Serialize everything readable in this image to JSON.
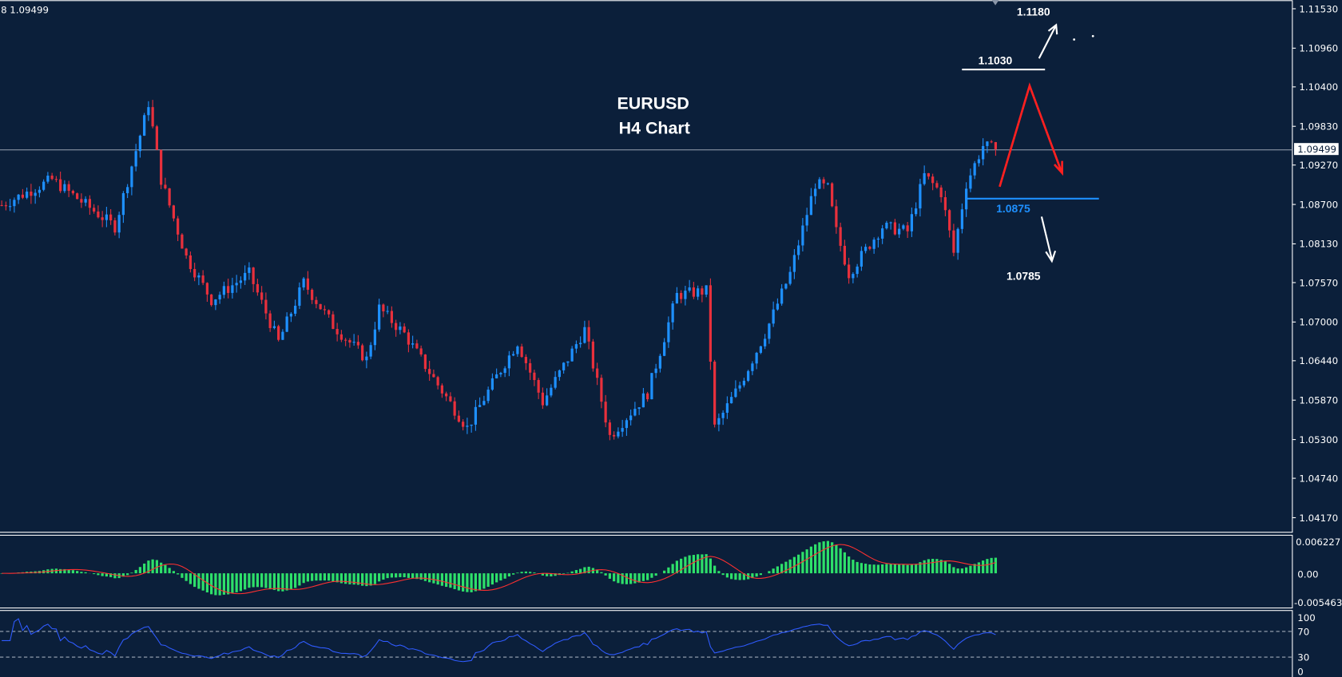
{
  "header": {
    "info": "8 1.09499"
  },
  "chart_data": {
    "type": "candlestick",
    "title": "EURUSD",
    "subtitle": "H4 Chart",
    "last_price": 1.09499,
    "last_price_label": "1.09499",
    "colors": {
      "background": "#0b1f3a",
      "bull": "#1e90ff",
      "bear": "#e8303c",
      "macd_hist": "#2ee06a",
      "macd_signal": "#ff3030",
      "rsi": "#2f5bff"
    },
    "price_ticks": [
      "1.11530",
      "1.10960",
      "1.10400",
      "1.09830",
      "1.09270",
      "1.08700",
      "1.08130",
      "1.07570",
      "1.07000",
      "1.06440",
      "1.05870",
      "1.05300",
      "1.04740",
      "1.04170"
    ],
    "ylim": [
      1.0417,
      1.1153
    ],
    "candle_count": 238,
    "path_waypoints": [
      [
        0,
        1.0869
      ],
      [
        12,
        1.0906
      ],
      [
        27,
        1.0838
      ],
      [
        34,
        1.0992
      ],
      [
        35,
        1.1017
      ],
      [
        38,
        1.0906
      ],
      [
        44,
        1.0794
      ],
      [
        50,
        1.0732
      ],
      [
        59,
        1.077
      ],
      [
        66,
        1.0671
      ],
      [
        72,
        1.0757
      ],
      [
        79,
        1.0695
      ],
      [
        87,
        1.0646
      ],
      [
        90,
        1.072
      ],
      [
        96,
        1.0683
      ],
      [
        104,
        1.0609
      ],
      [
        111,
        1.0547
      ],
      [
        118,
        1.0621
      ],
      [
        123,
        1.0671
      ],
      [
        129,
        1.0584
      ],
      [
        139,
        1.0689
      ],
      [
        145,
        1.0535
      ],
      [
        154,
        1.0597
      ],
      [
        161,
        1.0739
      ],
      [
        168,
        1.0745
      ],
      [
        170,
        1.0547
      ],
      [
        176,
        1.0609
      ],
      [
        182,
        1.0683
      ],
      [
        188,
        1.077
      ],
      [
        194,
        1.09
      ],
      [
        197,
        1.0893
      ],
      [
        199,
        1.0831
      ],
      [
        202,
        1.077
      ],
      [
        210,
        1.0838
      ],
      [
        216,
        1.0831
      ],
      [
        220,
        1.0912
      ],
      [
        224,
        1.0887
      ],
      [
        227,
        1.08
      ],
      [
        230,
        1.09
      ],
      [
        234,
        1.0955
      ],
      [
        237,
        1.09499
      ]
    ],
    "macd": {
      "ticks": [
        "0.006227",
        "0.00",
        "-0.005463"
      ],
      "range": [
        -0.005463,
        0.006227
      ]
    },
    "rsi": {
      "ticks": [
        "100",
        "70",
        "30",
        "0"
      ],
      "levels": [
        70,
        30
      ]
    },
    "annotations": {
      "target_high": "1.1180",
      "resistance": "1.1030",
      "support": "1.0875",
      "target_low": "1.0785"
    }
  }
}
